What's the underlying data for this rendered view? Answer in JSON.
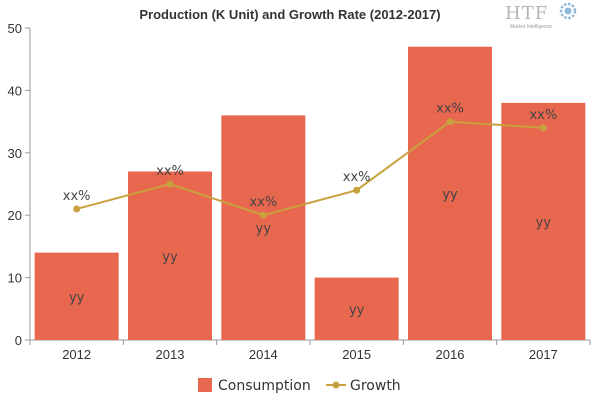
{
  "chart_data": {
    "type": "bar",
    "title": "Production (K Unit) and Growth Rate (2012-2017)",
    "categories": [
      "2012",
      "2013",
      "2014",
      "2015",
      "2016",
      "2017"
    ],
    "ylim": [
      0,
      50
    ],
    "yticks": [
      0,
      10,
      20,
      30,
      40,
      50
    ],
    "grid": false,
    "legend_position": "bottom-center",
    "series": [
      {
        "name": "Consumption",
        "type": "bar",
        "color": "#e8674f",
        "values": [
          14,
          27,
          36,
          10,
          47,
          38
        ],
        "data_labels": [
          "yy",
          "yy",
          "yy",
          "yy",
          "yy",
          "yy"
        ]
      },
      {
        "name": "Growth",
        "type": "line",
        "color": "#c9a13d",
        "values": [
          21,
          25,
          20,
          24,
          35,
          34
        ],
        "data_labels": [
          "xx%",
          "xx%",
          "xx%",
          "xx%",
          "xx%",
          "xx%"
        ]
      }
    ]
  },
  "logo": {
    "text": "HTF",
    "subtitle": "Market Intelligence",
    "icon": "gear-icon"
  }
}
